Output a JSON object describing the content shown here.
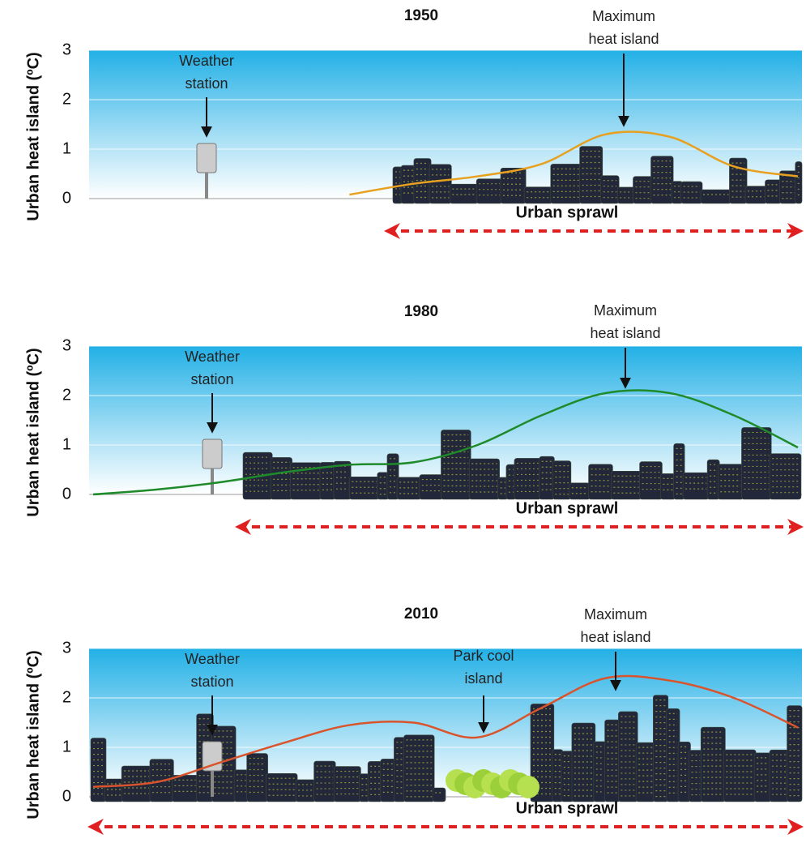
{
  "chart_data": [
    {
      "type": "line",
      "title": "1950",
      "y_label": "Urban heat island (ºC)",
      "ylim": [
        0,
        3
      ],
      "yticks": [
        0,
        1,
        2,
        3
      ],
      "grid": true,
      "color": "#e8a020",
      "categories": [
        null,
        null,
        null,
        null,
        null,
        null,
        null,
        null,
        null,
        null,
        null,
        null
      ],
      "values": [
        null,
        null,
        null,
        null,
        0.08,
        0.3,
        0.45,
        0.7,
        1.3,
        1.25,
        0.65,
        0.45
      ],
      "annotations": {
        "weather_station": [
          "Weather",
          "station"
        ],
        "max_heat_island": [
          "Maximum",
          "heat island"
        ],
        "sprawl": "Urban sprawl"
      }
    },
    {
      "type": "line",
      "title": "1980",
      "y_label": "Urban heat island (ºC)",
      "ylim": [
        0,
        3
      ],
      "yticks": [
        0,
        1,
        2,
        3
      ],
      "grid": true,
      "color": "#1f8a2a",
      "categories": [
        null,
        null,
        null,
        null,
        null,
        null,
        null,
        null,
        null,
        null,
        null,
        null
      ],
      "values": [
        0,
        0.1,
        0.25,
        0.45,
        0.6,
        0.65,
        1.0,
        1.6,
        2.05,
        2.05,
        1.6,
        0.95
      ],
      "annotations": {
        "weather_station": [
          "Weather",
          "station"
        ],
        "max_heat_island": [
          "Maximum",
          "heat island"
        ],
        "sprawl": "Urban sprawl"
      }
    },
    {
      "type": "line",
      "title": "2010",
      "y_label": "Urban heat island (ºC)",
      "ylim": [
        0,
        3
      ],
      "yticks": [
        0,
        1,
        2,
        3
      ],
      "grid": true,
      "color": "#d9542c",
      "categories": [
        null,
        null,
        null,
        null,
        null,
        null,
        null,
        null,
        null,
        null,
        null,
        null
      ],
      "values": [
        0.2,
        0.3,
        0.7,
        1.1,
        1.45,
        1.5,
        1.2,
        1.8,
        2.4,
        2.35,
        2.0,
        1.4
      ],
      "annotations": {
        "weather_station": [
          "Weather",
          "station"
        ],
        "max_heat_island": [
          "Maximum",
          "heat island"
        ],
        "park_cool_island": [
          "Park cool",
          "island"
        ],
        "sprawl": "Urban sprawl"
      }
    }
  ]
}
